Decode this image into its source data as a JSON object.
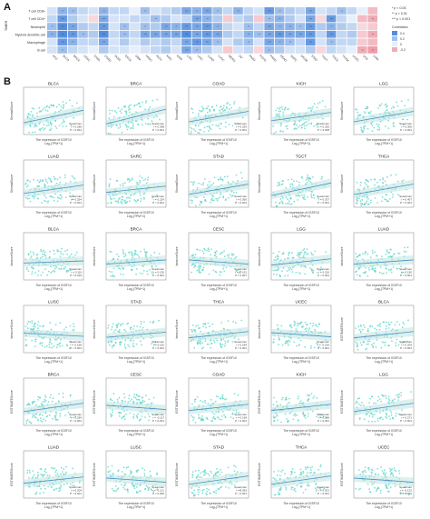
{
  "panel_a": {
    "letter": "A",
    "rows": [
      "T cell CD8+",
      "T cell CD4+",
      "Neutrophil",
      "Myeloid dendritic cell",
      "Macrophage",
      "B cell"
    ],
    "row_prefix": "TIMER",
    "cols": [
      "ACC",
      "BLCA",
      "BRCA",
      "CESC",
      "CHOL",
      "COAD",
      "DLBC",
      "ESCA",
      "GBM",
      "HNSC",
      "KICH",
      "KIRC",
      "KIRP",
      "LGG",
      "LIHC",
      "LUAD",
      "LUSC",
      "MESO",
      "OV",
      "PAAD",
      "PCPG",
      "PRAD",
      "READ",
      "SARC",
      "SKCM",
      "STAD",
      "TGCT",
      "THCA",
      "THYM",
      "UCEC",
      "UCS",
      "UVM"
    ],
    "sig_notes": [
      "* p < 0.05",
      "** p < 0.01",
      "*** p < 0.001"
    ],
    "legend_title": "Correlation",
    "legend_ticks": [
      "0.4",
      "0.2",
      "0",
      "-0.2"
    ]
  },
  "chart_data": {
    "type": "heatmap+scatter",
    "heatmap": {
      "rows": [
        "T cell CD8+",
        "T cell CD4+",
        "Neutrophil",
        "Myeloid dendritic cell",
        "Macrophage",
        "B cell"
      ],
      "cols": [
        "ACC",
        "BLCA",
        "BRCA",
        "CESC",
        "CHOL",
        "COAD",
        "DLBC",
        "ESCA",
        "GBM",
        "HNSC",
        "KICH",
        "KIRC",
        "KIRP",
        "LGG",
        "LIHC",
        "LUAD",
        "LUSC",
        "MESO",
        "OV",
        "PAAD",
        "PCPG",
        "PRAD",
        "READ",
        "SARC",
        "SKCM",
        "STAD",
        "TGCT",
        "THCA",
        "THYM",
        "UCEC",
        "UCS",
        "UVM"
      ],
      "values": [
        [
          0.05,
          0.25,
          0.2,
          0.1,
          0.05,
          0.25,
          0.1,
          0.1,
          0.0,
          0.2,
          0.05,
          0.1,
          0.15,
          0.3,
          0.25,
          0.3,
          0.2,
          0.1,
          0.25,
          0.1,
          0.05,
          0.35,
          0.2,
          0.15,
          0.1,
          0.3,
          0.05,
          0.1,
          0.2,
          0.1,
          0.0,
          -0.15
        ],
        [
          0.1,
          0.35,
          0.15,
          0.05,
          -0.05,
          0.3,
          0.05,
          0.05,
          0.1,
          0.1,
          0.2,
          0.15,
          0.05,
          0.1,
          0.3,
          0.25,
          0.15,
          -0.1,
          0.1,
          0.15,
          -0.1,
          0.2,
          0.25,
          0.15,
          0.05,
          0.3,
          -0.05,
          0.35,
          0.1,
          0.0,
          -0.15,
          -0.2
        ],
        [
          0.2,
          0.4,
          0.3,
          0.15,
          0.1,
          0.35,
          0.05,
          0.2,
          0.05,
          0.2,
          0.15,
          0.3,
          0.25,
          0.35,
          0.3,
          0.35,
          0.25,
          0.1,
          0.05,
          0.2,
          0.1,
          0.3,
          0.25,
          0.25,
          0.2,
          0.35,
          0.15,
          0.25,
          0.15,
          0.1,
          -0.05,
          -0.1
        ],
        [
          0.25,
          0.4,
          0.35,
          0.2,
          0.15,
          0.4,
          0.1,
          0.2,
          0.1,
          0.3,
          0.3,
          0.3,
          0.3,
          0.4,
          0.3,
          0.35,
          0.3,
          0.15,
          0.1,
          0.25,
          0.2,
          0.3,
          0.35,
          0.3,
          0.3,
          0.35,
          0.1,
          0.35,
          0.1,
          0.15,
          -0.1,
          -0.2
        ],
        [
          0.05,
          0.35,
          0.25,
          0.1,
          0.1,
          0.3,
          0.05,
          0.15,
          0.05,
          0.15,
          0.1,
          0.15,
          0.1,
          0.3,
          0.35,
          0.3,
          0.2,
          0.05,
          0.15,
          0.2,
          0.05,
          0.3,
          0.25,
          0.2,
          0.1,
          0.35,
          0.05,
          0.2,
          0.1,
          0.1,
          -0.1,
          -0.15
        ],
        [
          0.05,
          0.2,
          0.1,
          0.05,
          0.0,
          0.15,
          0.05,
          0.05,
          0.0,
          0.05,
          0.1,
          0.15,
          0.05,
          0.3,
          0.2,
          0.15,
          0.05,
          -0.1,
          0.05,
          0.1,
          -0.05,
          0.2,
          0.15,
          0.05,
          0.05,
          0.15,
          -0.05,
          0.1,
          0.05,
          0.0,
          -0.2,
          -0.25
        ]
      ],
      "legend_range": [
        -0.2,
        0.4
      ]
    },
    "scatter_panels": [
      {
        "title": "BLCA",
        "ylabel": "StromalScore",
        "slope": 0.6,
        "stats": [
          "Spearman",
          "r = 0.266",
          "P < 0.001"
        ]
      },
      {
        "title": "BRCA",
        "ylabel": "StromalScore",
        "slope": 0.7,
        "stats": [
          "Spearman",
          "r = 0.398",
          "P < 0.001"
        ]
      },
      {
        "title": "COAD",
        "ylabel": "StromalScore",
        "slope": 0.5,
        "stats": [
          "Spearman",
          "r = 0.293",
          "P < 0.001"
        ]
      },
      {
        "title": "KICH",
        "ylabel": "StromalScore",
        "slope": 0.4,
        "stats": [
          "Spearman",
          "r = 0.326",
          "P = 0.008"
        ]
      },
      {
        "title": "LGG",
        "ylabel": "StromalScore",
        "slope": 0.5,
        "stats": [
          "Spearman",
          "r = 0.300",
          "P < 0.001"
        ]
      },
      {
        "title": "LUAD",
        "ylabel": "StromalScore",
        "slope": 0.4,
        "stats": [
          "Spearman",
          "r = 0.254",
          "P < 0.001"
        ]
      },
      {
        "title": "SARC",
        "ylabel": "StromalScore",
        "slope": 0.3,
        "stats": [
          "Spearman",
          "r = 0.224",
          "P < 0.001"
        ]
      },
      {
        "title": "STAD",
        "ylabel": "StromalScore",
        "slope": 0.5,
        "stats": [
          "Spearman",
          "r = 0.360",
          "P < 0.001"
        ]
      },
      {
        "title": "TGCT",
        "ylabel": "StromalScore",
        "slope": 0.6,
        "stats": [
          "Spearman",
          "r = 0.337",
          "P < 0.001"
        ]
      },
      {
        "title": "THCA",
        "ylabel": "StromalScore",
        "slope": 0.5,
        "stats": [
          "Spearman",
          "r = 0.407",
          "P < 0.001"
        ]
      },
      {
        "title": "BLCA",
        "ylabel": "ImmuneScore",
        "slope": 0.1,
        "stats": [
          "Spearman",
          "r = 0.116",
          "P = 0.019"
        ]
      },
      {
        "title": "BRCA",
        "ylabel": "ImmuneScore",
        "slope": 0.2,
        "stats": [
          "Spearman",
          "r = 0.136",
          "P < 0.001"
        ]
      },
      {
        "title": "CESC",
        "ylabel": "ImmuneScore",
        "slope": -0.2,
        "stats": [
          "Spearman",
          "r = -0.151",
          "P = 0.007"
        ]
      },
      {
        "title": "LGG",
        "ylabel": "ImmuneScore",
        "slope": 0.3,
        "stats": [
          "Spearman",
          "r = 0.216",
          "P < 0.001"
        ]
      },
      {
        "title": "LUAD",
        "ylabel": "ImmuneScore",
        "slope": 0.2,
        "stats": [
          "Spearman",
          "r = 0.150",
          "P < 0.001"
        ]
      },
      {
        "title": "LUSC",
        "ylabel": "ImmuneScore",
        "slope": -0.15,
        "stats": [
          "Spearman",
          "r = -0.168",
          "P < 0.001"
        ]
      },
      {
        "title": "STAD",
        "ylabel": "ImmuneScore",
        "slope": 0.25,
        "stats": [
          "Spearman",
          "r = 0.192",
          "P < 0.001"
        ]
      },
      {
        "title": "THCA",
        "ylabel": "ImmuneScore",
        "slope": 0.3,
        "stats": [
          "Spearman",
          "r = 0.184",
          "P < 0.001"
        ]
      },
      {
        "title": "UCEC",
        "ylabel": "ImmuneScore",
        "slope": -0.2,
        "stats": [
          "Spearman",
          "r = -0.156",
          "P < 0.001"
        ]
      },
      {
        "title": "BLCA",
        "ylabel": "ESTIMATEScore",
        "slope": 0.3,
        "stats": [
          "Spearman",
          "r = 0.204",
          "P < 0.001"
        ]
      },
      {
        "title": "BRCA",
        "ylabel": "ESTIMATEScore",
        "slope": 0.4,
        "stats": [
          "Spearman",
          "r = 0.294",
          "P < 0.001"
        ]
      },
      {
        "title": "CESC",
        "ylabel": "ESTIMATEScore",
        "slope": -0.2,
        "stats": [
          "Spearman",
          "r = -0.117",
          "P = 0.041"
        ]
      },
      {
        "title": "COAD",
        "ylabel": "ESTIMATEScore",
        "slope": 0.3,
        "stats": [
          "Spearman",
          "r = 0.199",
          "P < 0.001"
        ]
      },
      {
        "title": "KICH",
        "ylabel": "ESTIMATEScore",
        "slope": 0.3,
        "stats": [
          "Spearman",
          "r = 0.269",
          "P = 0.031"
        ]
      },
      {
        "title": "LGG",
        "ylabel": "ESTIMATEScore",
        "slope": 0.4,
        "stats": [
          "Spearman",
          "r = 0.271",
          "P < 0.001"
        ]
      },
      {
        "title": "LUAD",
        "ylabel": "ESTIMATEScore",
        "slope": 0.3,
        "stats": [
          "Spearman",
          "r = 0.204",
          "P < 0.001"
        ]
      },
      {
        "title": "LUSC",
        "ylabel": "ESTIMATEScore",
        "slope": -0.2,
        "stats": [
          "Spearman",
          "r = -0.121",
          "P = 0.006"
        ]
      },
      {
        "title": "STAD",
        "ylabel": "ESTIMATEScore",
        "slope": 0.4,
        "stats": [
          "Spearman",
          "r = 0.283",
          "P < 0.001"
        ]
      },
      {
        "title": "THCA",
        "ylabel": "ESTIMATEScore",
        "slope": 0.4,
        "stats": [
          "Spearman",
          "r = 0.301",
          "P < 0.001"
        ]
      },
      {
        "title": "UCEC",
        "ylabel": "ESTIMATEScore",
        "slope": -0.2,
        "stats": [
          "Spearman",
          "r = -0.132",
          "P = 0.002"
        ]
      }
    ],
    "xlabel_line1": "The expression of IGSF10",
    "xlabel_line2": "Log₂(TPM+1)",
    "colors": {
      "point": "#4fd1c5",
      "line": "#4a90c2",
      "band": "#bfe3e0",
      "pos": "#3b7dd8",
      "neg": "#e05a6e"
    }
  },
  "panel_b": {
    "letter": "B"
  }
}
